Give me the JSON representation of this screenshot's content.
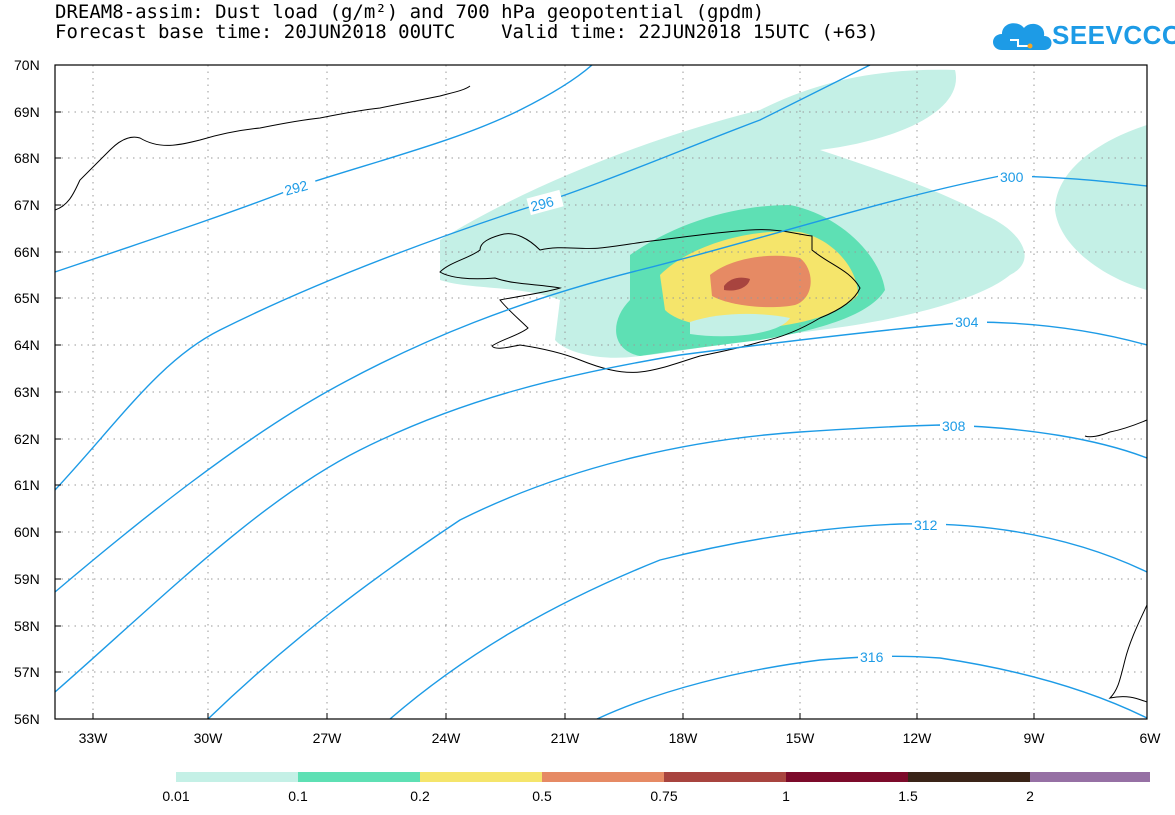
{
  "title": {
    "line1": "DREAM8-assim: Dust load (g/m²) and 700 hPa geopotential (gpdm)",
    "line2": "Forecast base time: 20JUN2018 00UTC    Valid time: 22JUN2018 15UTC (+63)"
  },
  "logo": {
    "text": "SEEVCCC",
    "color": "#1d9be6"
  },
  "map": {
    "lat_labels": [
      "70N",
      "69N",
      "68N",
      "67N",
      "66N",
      "65N",
      "64N",
      "63N",
      "62N",
      "61N",
      "60N",
      "59N",
      "58N",
      "57N",
      "56N"
    ],
    "lon_labels": [
      "33W",
      "30W",
      "27W",
      "24W",
      "21W",
      "18W",
      "15W",
      "12W",
      "9W",
      "6W"
    ],
    "contour_color": "#1d9be6",
    "contour_labels": [
      "292",
      "296",
      "300",
      "304",
      "308",
      "312",
      "316"
    ]
  },
  "legend": {
    "colors": [
      "#c4f0e6",
      "#5ee0b4",
      "#f5e56b",
      "#e68a64",
      "#a8443f",
      "#7c0a2a",
      "#3a2418",
      "#9670a4"
    ],
    "labels": [
      "0.01",
      "0.1",
      "0.2",
      "0.5",
      "0.75",
      "1",
      "1.5",
      "2"
    ]
  }
}
